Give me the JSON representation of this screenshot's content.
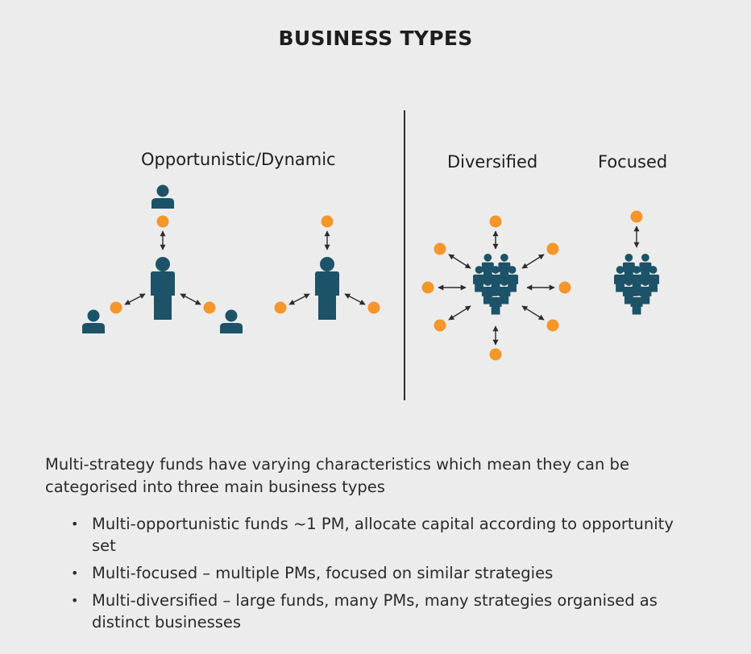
{
  "title": "BUSINESS TYPES",
  "labels": {
    "opportunistic": "Opportunistic/Dynamic",
    "diversified": "Diversified",
    "focused": "Focused"
  },
  "colors": {
    "person": "#1c5368",
    "node": "#f4962a",
    "arrow": "#2c2c2c",
    "divider": "#2c2c2c",
    "background": "#ececec"
  },
  "icons": [
    "person-icon",
    "people-group-icon",
    "strategy-node",
    "double-arrow"
  ],
  "intro": "Multi-strategy funds have varying characteristics which mean they can be categorised into three main business types",
  "bullets": [
    "Multi-opportunistic funds ~1 PM, allocate capital according to opportunity set",
    "Multi-focused – multiple PMs, focused on similar strategies",
    "Multi-diversified – large funds, many PMs, many strategies organised as distinct businesses"
  ]
}
